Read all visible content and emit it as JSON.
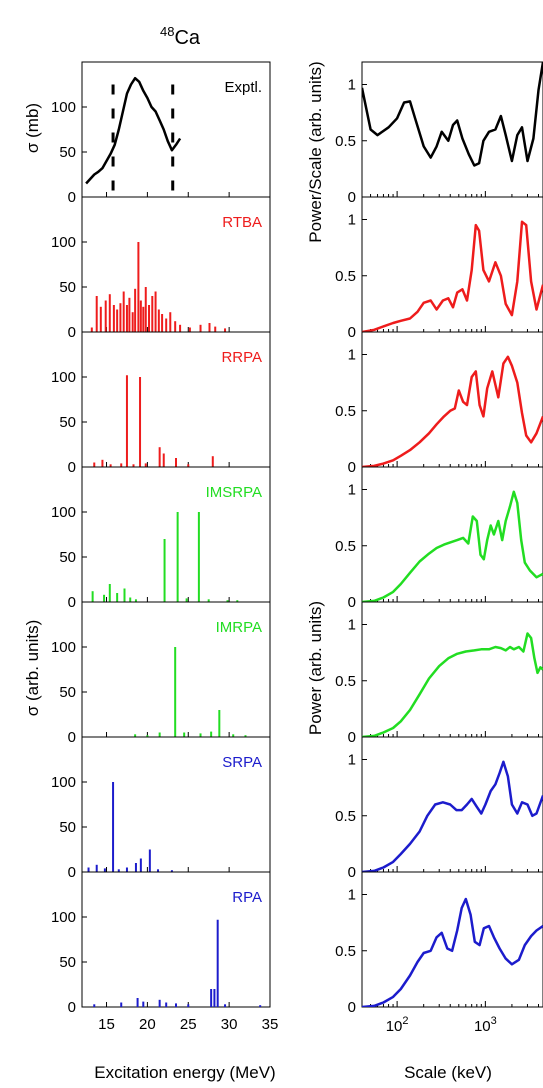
{
  "figure": {
    "title_main": "Ca",
    "title_sup": "48",
    "left_xlabel": "Excitation energy (MeV)",
    "right_xlabel": "Scale (keV)",
    "left_ylabel_top": "σ (mb)",
    "left_ylabel_bottom": "σ (arb. units)",
    "right_ylabel_top": "Power/Scale (arb. units)",
    "right_ylabel_bottom": "Power (arb. units)"
  },
  "chart_data": [
    {
      "type": "line",
      "panel": "left",
      "label": "Exptl.",
      "color": "#000000",
      "xlim": [
        12,
        35
      ],
      "ylim": [
        0,
        150
      ],
      "yticks": [
        0,
        50,
        100
      ],
      "xticks": [
        15,
        20,
        25,
        30,
        35
      ],
      "x": [
        12.5,
        13,
        13.5,
        14,
        14.5,
        15,
        15.5,
        16,
        16.5,
        17,
        17.5,
        18,
        18.5,
        19,
        19.5,
        20,
        20.5,
        21,
        21.5,
        22,
        22.5,
        23,
        23.5,
        24
      ],
      "y": [
        15,
        20,
        25,
        28,
        32,
        40,
        48,
        58,
        75,
        95,
        115,
        125,
        132,
        128,
        118,
        110,
        100,
        95,
        85,
        75,
        62,
        52,
        58,
        65
      ],
      "markers": {
        "x": [
          15.8,
          23.1
        ],
        "y_top": 125,
        "y_bottom": 5
      }
    },
    {
      "type": "bar",
      "panel": "left",
      "label": "RTBA",
      "color": "#ee1c1c",
      "xlim": [
        12,
        35
      ],
      "ylim": [
        0,
        150
      ],
      "yticks": [
        0,
        50,
        100
      ],
      "x": [
        13.2,
        13.8,
        14.3,
        14.9,
        15.4,
        15.9,
        16.3,
        16.7,
        17.1,
        17.5,
        17.8,
        18.2,
        18.5,
        18.9,
        19.2,
        19.5,
        19.8,
        20.2,
        20.6,
        21.0,
        21.4,
        21.8,
        22.3,
        22.8,
        23.4,
        24.0,
        25.2,
        26.5,
        27.6,
        28.3,
        29.5
      ],
      "values": [
        5,
        40,
        28,
        35,
        42,
        30,
        25,
        32,
        45,
        30,
        38,
        22,
        48,
        100,
        35,
        28,
        50,
        30,
        40,
        45,
        25,
        20,
        15,
        22,
        12,
        8,
        5,
        8,
        10,
        6,
        4
      ]
    },
    {
      "type": "bar",
      "panel": "left",
      "label": "RRPA",
      "color": "#ee1c1c",
      "xlim": [
        12,
        35
      ],
      "ylim": [
        0,
        150
      ],
      "yticks": [
        0,
        50,
        100
      ],
      "x": [
        13.5,
        14.5,
        15.5,
        16.8,
        17.5,
        18.3,
        19.1,
        19.8,
        21.5,
        22.0,
        23.5,
        25.0,
        28.0
      ],
      "values": [
        5,
        8,
        3,
        4,
        102,
        3,
        100,
        4,
        22,
        15,
        10,
        3,
        12
      ]
    },
    {
      "type": "bar",
      "panel": "left",
      "label": "IMSRPA",
      "color": "#22dd22",
      "xlim": [
        12,
        35
      ],
      "ylim": [
        0,
        150
      ],
      "yticks": [
        0,
        50,
        100
      ],
      "x": [
        13.3,
        14.7,
        15.4,
        16.3,
        17.2,
        17.9,
        18.6,
        22.1,
        23.7,
        24.8,
        26.3,
        27.5,
        29.8,
        31.0
      ],
      "values": [
        12,
        8,
        20,
        10,
        15,
        5,
        3,
        70,
        100,
        4,
        100,
        3,
        2,
        2
      ]
    },
    {
      "type": "bar",
      "panel": "left",
      "label": "IMRPA",
      "color": "#22dd22",
      "xlim": [
        12,
        35
      ],
      "ylim": [
        0,
        150
      ],
      "yticks": [
        0,
        50,
        100
      ],
      "x": [
        18.5,
        20.0,
        21.5,
        23.4,
        24.5,
        26.5,
        27.8,
        28.8,
        30.5,
        32.0
      ],
      "values": [
        3,
        2,
        5,
        100,
        5,
        4,
        6,
        30,
        3,
        2
      ]
    },
    {
      "type": "bar",
      "panel": "left",
      "label": "SRPA",
      "color": "#1c1ccc",
      "xlim": [
        12,
        35
      ],
      "ylim": [
        0,
        150
      ],
      "yticks": [
        0,
        50,
        100
      ],
      "x": [
        12.8,
        13.8,
        14.8,
        15.8,
        16.5,
        17.5,
        18.6,
        19.2,
        20.3,
        21.3,
        23.0
      ],
      "values": [
        5,
        8,
        4,
        100,
        3,
        5,
        10,
        15,
        25,
        3,
        2
      ]
    },
    {
      "type": "bar",
      "panel": "left",
      "label": "RPA",
      "color": "#1c1ccc",
      "xlim": [
        12,
        35
      ],
      "ylim": [
        0,
        150
      ],
      "yticks": [
        0,
        50,
        100
      ],
      "x": [
        13.5,
        16.8,
        18.8,
        19.5,
        21.5,
        22.3,
        23.5,
        25.0,
        27.8,
        28.2,
        28.6,
        29.5,
        33.8
      ],
      "values": [
        3,
        5,
        10,
        6,
        8,
        5,
        4,
        3,
        20,
        20,
        97,
        3,
        2
      ]
    },
    {
      "type": "line",
      "panel": "right",
      "label": "Exptl.",
      "color": "#000000",
      "xscale": "log",
      "xlim": [
        40,
        4500
      ],
      "ylim": [
        0,
        1.2
      ],
      "yticks": [
        0,
        0.5,
        1
      ],
      "xticks": [
        100,
        1000
      ],
      "x": [
        40,
        50,
        60,
        80,
        100,
        120,
        140,
        160,
        200,
        240,
        280,
        320,
        380,
        430,
        480,
        550,
        650,
        750,
        850,
        950,
        1100,
        1300,
        1500,
        1700,
        2000,
        2300,
        2600,
        3000,
        3500,
        4000,
        4500
      ],
      "y": [
        0.97,
        0.6,
        0.55,
        0.62,
        0.7,
        0.84,
        0.85,
        0.7,
        0.45,
        0.35,
        0.45,
        0.58,
        0.5,
        0.64,
        0.68,
        0.52,
        0.38,
        0.28,
        0.3,
        0.5,
        0.58,
        0.6,
        0.72,
        0.55,
        0.32,
        0.55,
        0.62,
        0.32,
        0.52,
        0.95,
        1.2
      ]
    },
    {
      "type": "line",
      "panel": "right",
      "label": "RTBA",
      "color": "#ee1c1c",
      "xscale": "log",
      "xlim": [
        40,
        4500
      ],
      "ylim": [
        0,
        1.2
      ],
      "yticks": [
        0,
        0.5,
        1
      ],
      "x": [
        40,
        55,
        70,
        90,
        110,
        140,
        170,
        200,
        240,
        280,
        330,
        380,
        430,
        480,
        550,
        620,
        700,
        780,
        850,
        950,
        1100,
        1300,
        1500,
        1700,
        2000,
        2300,
        2600,
        2900,
        3300,
        3800,
        4500
      ],
      "y": [
        0,
        0.02,
        0.05,
        0.08,
        0.1,
        0.12,
        0.18,
        0.26,
        0.28,
        0.2,
        0.28,
        0.3,
        0.22,
        0.35,
        0.38,
        0.28,
        0.55,
        0.95,
        0.9,
        0.55,
        0.45,
        0.62,
        0.5,
        0.25,
        0.15,
        0.45,
        0.98,
        0.95,
        0.45,
        0.2,
        0.42
      ]
    },
    {
      "type": "line",
      "panel": "right",
      "label": "RRPA",
      "color": "#ee1c1c",
      "xscale": "log",
      "xlim": [
        40,
        4500
      ],
      "ylim": [
        0,
        1.2
      ],
      "yticks": [
        0,
        0.5,
        1
      ],
      "x": [
        40,
        55,
        70,
        90,
        110,
        140,
        180,
        230,
        280,
        340,
        400,
        450,
        500,
        560,
        620,
        700,
        780,
        860,
        950,
        1050,
        1200,
        1400,
        1600,
        1800,
        2000,
        2300,
        2600,
        2900,
        3300,
        3800,
        4500
      ],
      "y": [
        0,
        0.01,
        0.03,
        0.06,
        0.1,
        0.15,
        0.22,
        0.3,
        0.38,
        0.45,
        0.5,
        0.52,
        0.68,
        0.58,
        0.55,
        0.8,
        0.85,
        0.55,
        0.45,
        0.7,
        0.85,
        0.62,
        0.92,
        0.98,
        0.9,
        0.75,
        0.48,
        0.28,
        0.22,
        0.3,
        0.45
      ]
    },
    {
      "type": "line",
      "panel": "right",
      "label": "IMSRPA",
      "color": "#22dd22",
      "xscale": "log",
      "xlim": [
        40,
        4500
      ],
      "ylim": [
        0,
        1.2
      ],
      "yticks": [
        0,
        0.5,
        1
      ],
      "x": [
        40,
        55,
        70,
        90,
        110,
        140,
        180,
        230,
        280,
        340,
        400,
        480,
        560,
        640,
        720,
        800,
        880,
        960,
        1050,
        1150,
        1250,
        1400,
        1550,
        1700,
        1900,
        2100,
        2300,
        2550,
        2800,
        3200,
        3800,
        4500
      ],
      "y": [
        0,
        0.01,
        0.04,
        0.09,
        0.16,
        0.26,
        0.36,
        0.43,
        0.48,
        0.51,
        0.53,
        0.55,
        0.57,
        0.52,
        0.76,
        0.72,
        0.42,
        0.38,
        0.55,
        0.68,
        0.6,
        0.72,
        0.55,
        0.72,
        0.85,
        0.98,
        0.88,
        0.55,
        0.35,
        0.28,
        0.22,
        0.25
      ]
    },
    {
      "type": "line",
      "panel": "right",
      "label": "IMRPA",
      "color": "#22dd22",
      "xscale": "log",
      "xlim": [
        40,
        4500
      ],
      "ylim": [
        0,
        1.2
      ],
      "yticks": [
        0,
        0.5,
        1
      ],
      "x": [
        40,
        55,
        70,
        90,
        110,
        140,
        180,
        230,
        300,
        380,
        480,
        600,
        750,
        900,
        1100,
        1300,
        1500,
        1700,
        1900,
        2100,
        2400,
        2700,
        3000,
        3300,
        3600,
        3900,
        4200,
        4500
      ],
      "y": [
        0,
        0.01,
        0.04,
        0.08,
        0.14,
        0.24,
        0.38,
        0.52,
        0.63,
        0.7,
        0.74,
        0.76,
        0.77,
        0.78,
        0.78,
        0.8,
        0.79,
        0.77,
        0.8,
        0.78,
        0.8,
        0.76,
        0.92,
        0.88,
        0.7,
        0.57,
        0.62,
        0.6
      ]
    },
    {
      "type": "line",
      "panel": "right",
      "label": "SRPA",
      "color": "#1c1ccc",
      "xscale": "log",
      "xlim": [
        40,
        4500
      ],
      "ylim": [
        0,
        1.2
      ],
      "yticks": [
        0,
        0.5,
        1
      ],
      "x": [
        40,
        55,
        70,
        90,
        110,
        140,
        180,
        220,
        270,
        330,
        400,
        470,
        540,
        620,
        700,
        800,
        900,
        1000,
        1150,
        1300,
        1450,
        1600,
        1800,
        2000,
        2300,
        2600,
        3000,
        3400,
        3800,
        4500
      ],
      "y": [
        0,
        0.01,
        0.04,
        0.09,
        0.16,
        0.25,
        0.36,
        0.5,
        0.6,
        0.62,
        0.6,
        0.55,
        0.55,
        0.6,
        0.65,
        0.58,
        0.52,
        0.6,
        0.72,
        0.78,
        0.88,
        0.98,
        0.85,
        0.6,
        0.52,
        0.62,
        0.6,
        0.5,
        0.52,
        0.68
      ]
    },
    {
      "type": "line",
      "panel": "right",
      "label": "RPA",
      "color": "#1c1ccc",
      "xscale": "log",
      "xlim": [
        40,
        4500
      ],
      "ylim": [
        0,
        1.2
      ],
      "yticks": [
        0,
        0.5,
        1
      ],
      "x": [
        40,
        55,
        70,
        90,
        110,
        140,
        170,
        200,
        240,
        280,
        320,
        370,
        420,
        480,
        540,
        600,
        680,
        760,
        860,
        960,
        1100,
        1250,
        1450,
        1700,
        2000,
        2400,
        2800,
        3300,
        3800,
        4500
      ],
      "y": [
        0,
        0.01,
        0.04,
        0.09,
        0.16,
        0.28,
        0.4,
        0.48,
        0.5,
        0.62,
        0.66,
        0.52,
        0.5,
        0.68,
        0.88,
        0.96,
        0.82,
        0.58,
        0.55,
        0.7,
        0.72,
        0.62,
        0.52,
        0.43,
        0.38,
        0.42,
        0.55,
        0.63,
        0.68,
        0.72
      ]
    }
  ]
}
